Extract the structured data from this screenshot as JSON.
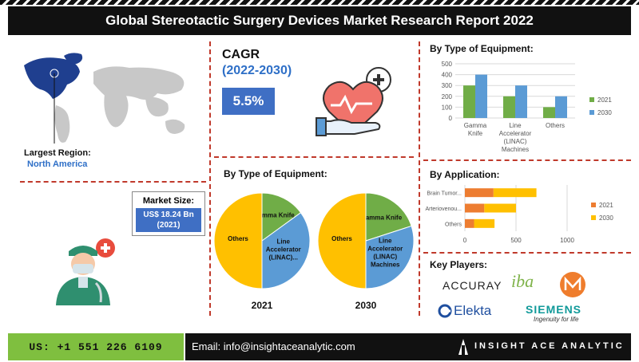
{
  "title": "Global Stereotactic Surgery Devices Market Research Report 2022",
  "region": {
    "label": "Largest Region:",
    "value": "North America"
  },
  "market_size": {
    "label": "Market Size:",
    "value": "US$ 18.24 Bn",
    "year": "(2021)"
  },
  "cagr": {
    "label": "CAGR",
    "period": "(2022-2030)",
    "value": "5.5%"
  },
  "section_titles": {
    "type_pies": "By Type of Equipment:",
    "type_bars": "By Type of Equipment:",
    "application": "By Application:",
    "key_players": "Key Players:"
  },
  "pies": [
    {
      "year": "2021",
      "labels": [
        "Gamma Knife",
        "Line Accelerator (LINAC)...",
        "Others"
      ]
    },
    {
      "year": "2030",
      "labels": [
        "Gamma Knife",
        "Line Accelerator (LINAC) Machines",
        "Others"
      ]
    }
  ],
  "key_players": [
    "ACCURAY",
    "iba",
    "Elekta",
    "SIEMENS",
    "Ingenuity for life"
  ],
  "footer": {
    "phone": "US: +1 551 226 6109",
    "email": "Email: info@insightaceanalytic.com",
    "brand": "INSIGHT ACE ANALYTIC"
  },
  "colors": {
    "green": "#70ad47",
    "blue": "#5b9bd5",
    "orange": "#ed7d31",
    "yellow": "#ffc000",
    "accent": "#c0392b"
  },
  "chart_data": [
    {
      "type": "bar",
      "title": "By Type of Equipment:",
      "categories": [
        "Gamma Knife",
        "Line Accelerator (LINAC) Machines",
        "Others"
      ],
      "series": [
        {
          "name": "2021",
          "values": [
            300,
            200,
            100
          ]
        },
        {
          "name": "2030",
          "values": [
            400,
            300,
            200
          ]
        }
      ],
      "ylim": [
        0,
        500
      ],
      "yticks": [
        0,
        100,
        200,
        300,
        400,
        500
      ],
      "legend": "right"
    },
    {
      "type": "bar",
      "orientation": "horizontal",
      "stacked": true,
      "title": "By Application:",
      "categories": [
        "Brain Tumor...",
        "Arteriovenou...",
        "Others"
      ],
      "series": [
        {
          "name": "2021",
          "values": [
            280,
            190,
            90
          ]
        },
        {
          "name": "2030",
          "values": [
            420,
            310,
            200
          ]
        }
      ],
      "xlim": [
        0,
        1000
      ],
      "xticks": [
        0,
        500,
        1000
      ],
      "legend": "right"
    },
    {
      "type": "pie",
      "title": "2021",
      "labels": [
        "Gamma Knife",
        "Line Accelerator (LINAC)...",
        "Others"
      ],
      "values": [
        15,
        35,
        50
      ]
    },
    {
      "type": "pie",
      "title": "2030",
      "labels": [
        "Gamma Knife",
        "Line Accelerator (LINAC) Machines",
        "Others"
      ],
      "values": [
        20,
        30,
        50
      ]
    }
  ]
}
